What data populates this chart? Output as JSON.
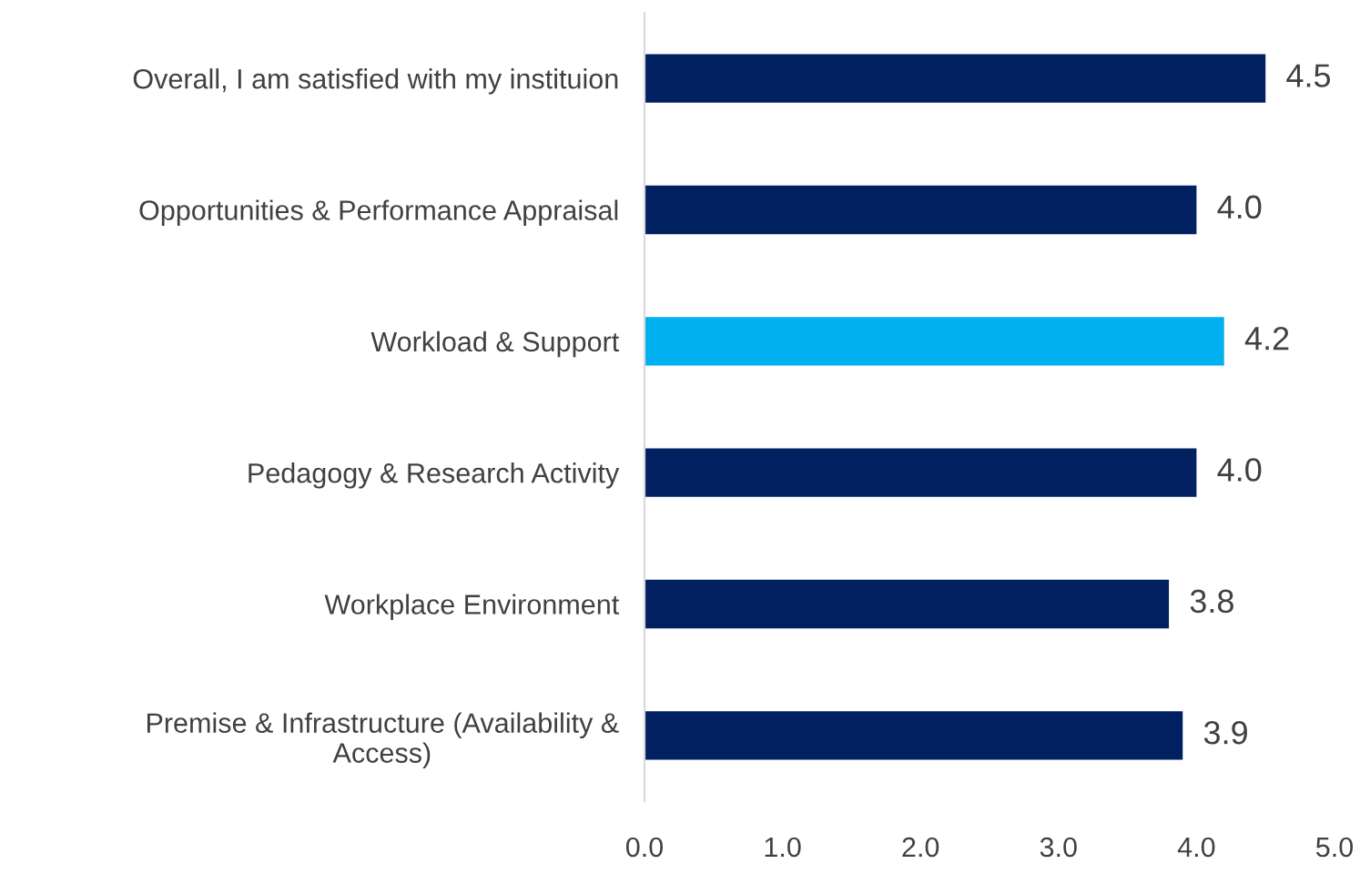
{
  "chart_data": {
    "type": "bar",
    "orientation": "horizontal",
    "categories": [
      "Overall, I am satisfied with my instituion",
      "Opportunities & Performance Appraisal",
      "Workload & Support",
      "Pedagogy & Research Activity",
      "Workplace Environment",
      "Premise & Infrastructure (Availability & Access)"
    ],
    "values": [
      4.5,
      4.0,
      4.2,
      4.0,
      3.8,
      3.9
    ],
    "colors": [
      "#002060",
      "#002060",
      "#00b0f0",
      "#002060",
      "#002060",
      "#002060"
    ],
    "value_labels": [
      "4.5",
      "4.0",
      "4.2",
      "4.0",
      "3.8",
      "3.9"
    ],
    "xlim": [
      0,
      5
    ],
    "xticks": [
      {
        "value": 0,
        "label": "0.0"
      },
      {
        "value": 1,
        "label": "1.0"
      },
      {
        "value": 2,
        "label": "2.0"
      },
      {
        "value": 3,
        "label": "3.0"
      },
      {
        "value": 4,
        "label": "4.0"
      },
      {
        "value": 5,
        "label": "5.0"
      }
    ],
    "grid": false,
    "legend": false
  }
}
